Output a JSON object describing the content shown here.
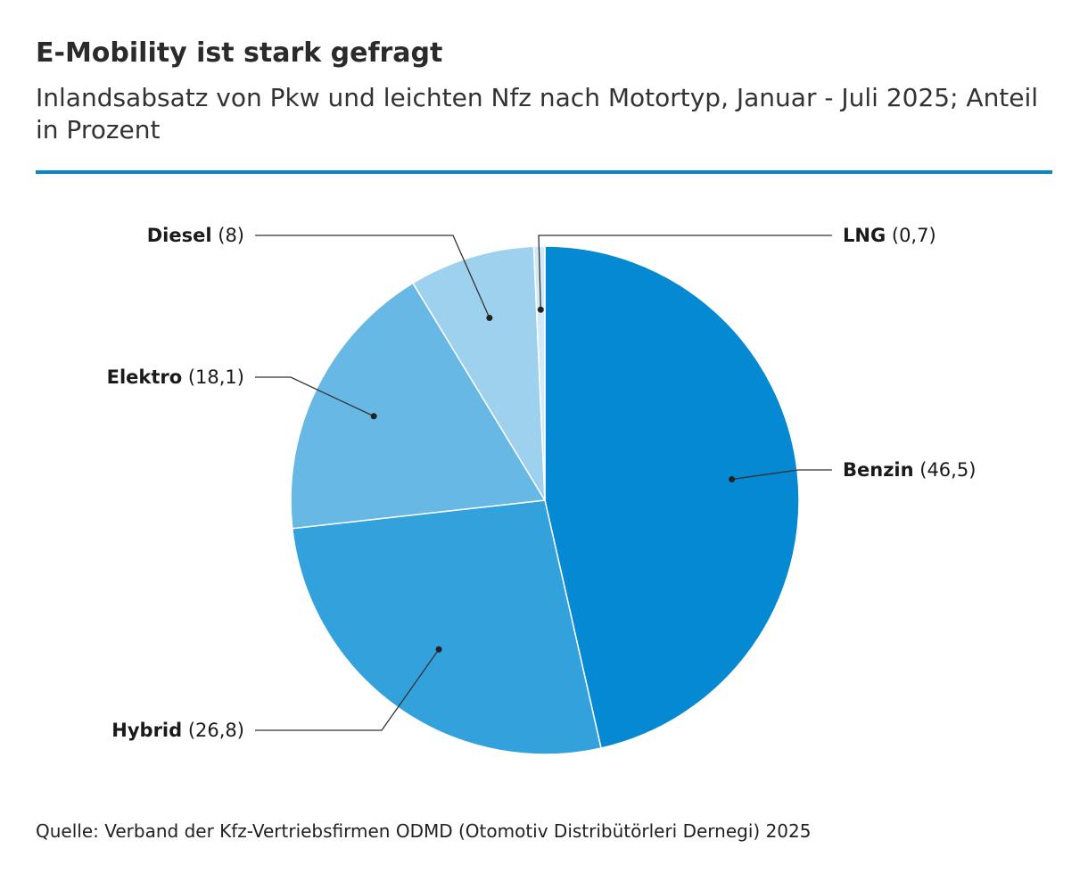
{
  "title": "E-Mobility ist stark gefragt",
  "subtitle": "Inlandsabsatz von Pkw und leichten Nfz nach Motortyp, Januar - Juli 2025; Anteil in Prozent",
  "source": "Quelle: Verband der Kfz-Vertriebsfirmen ODMD (Otomotiv Distribütörleri Dernegi) 2025",
  "colors": {
    "accent_rule": "#0a84cc"
  },
  "chart_data": {
    "type": "pie",
    "title": "",
    "categories": [
      "Benzin",
      "Hybrid",
      "Elektro",
      "Diesel",
      "LNG"
    ],
    "values": [
      46.5,
      26.8,
      18.1,
      8,
      0.7
    ],
    "value_labels": [
      "(46,5)",
      "(26,8)",
      "(18,1)",
      "(8)",
      "(0,7)"
    ],
    "colors": [
      "#0589d2",
      "#33a1dc",
      "#67b8e4",
      "#9dd1ed",
      "#d2e9f6"
    ],
    "start_angle_deg": 0,
    "direction": "clockwise",
    "legend": "none (direct labels)"
  }
}
